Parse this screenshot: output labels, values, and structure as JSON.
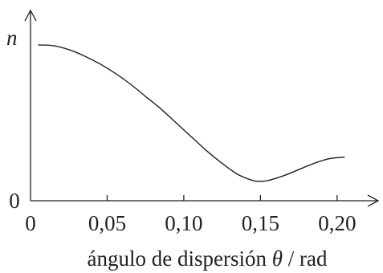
{
  "chart_data": {
    "type": "line",
    "title": "",
    "ylabel": "n",
    "xlabel": {
      "prefix": "ángulo de dispersión ",
      "symbol": "θ",
      "suffix": " / rad"
    },
    "xlim": [
      0,
      0.22
    ],
    "ylim": [
      0,
      1
    ],
    "x_ticks": [
      {
        "value": 0,
        "label": "0"
      },
      {
        "value": 0.05,
        "label": "0,05"
      },
      {
        "value": 0.1,
        "label": "0,10"
      },
      {
        "value": 0.15,
        "label": "0,15"
      },
      {
        "value": 0.2,
        "label": "0,20"
      }
    ],
    "y_ticks": [
      {
        "value": 0,
        "label": "0"
      }
    ],
    "grid": false,
    "series": [
      {
        "color": "#231f20",
        "x": [
          0.005,
          0.015,
          0.025,
          0.035,
          0.045,
          0.055,
          0.065,
          0.075,
          0.085,
          0.095,
          0.105,
          0.115,
          0.125,
          0.135,
          0.145,
          0.15,
          0.155,
          0.165,
          0.175,
          0.185,
          0.195,
          0.205
        ],
        "y": [
          1.0,
          0.995,
          0.97,
          0.93,
          0.88,
          0.82,
          0.75,
          0.67,
          0.59,
          0.5,
          0.41,
          0.32,
          0.24,
          0.17,
          0.13,
          0.125,
          0.13,
          0.16,
          0.2,
          0.24,
          0.27,
          0.28
        ]
      }
    ]
  }
}
